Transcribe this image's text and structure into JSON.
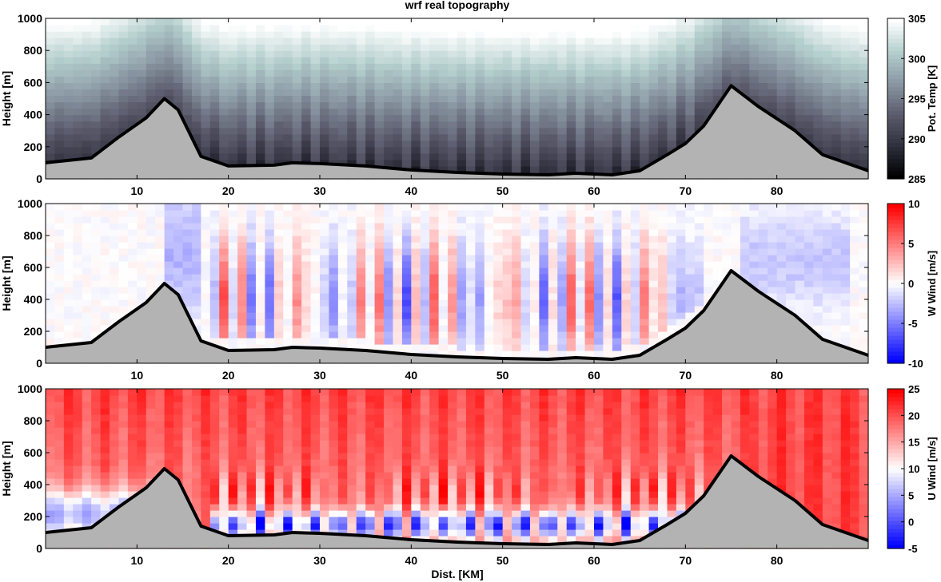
{
  "figure_title": "wrf real topography",
  "xlabel": "Dist. [KM]",
  "x_ticks": [
    10,
    20,
    30,
    40,
    50,
    60,
    70,
    80
  ],
  "xlim": [
    0,
    90
  ],
  "y_ticks": [
    0,
    200,
    400,
    600,
    800,
    1000
  ],
  "ylim": [
    0,
    1000
  ],
  "chart_data": [
    {
      "type": "heatmap",
      "field": "theta",
      "ylabel": "Height [m]",
      "colorbar_label": "Pot. Temp [K]",
      "colorbar_ticks": [
        285,
        290,
        295,
        300,
        305
      ],
      "clim": [
        285,
        305
      ],
      "colormap": [
        "#000000",
        "#2f2f3d",
        "#5b5b6c",
        "#8a97a3",
        "#b4cfcd",
        "#ffffff"
      ],
      "topography": {
        "x": [
          0,
          5,
          8,
          11,
          13,
          14.5,
          17,
          20,
          25,
          27,
          30,
          35,
          40,
          45,
          50,
          55,
          58,
          62,
          65,
          68,
          70,
          72,
          75,
          78,
          82,
          85,
          90
        ],
        "y": [
          100,
          130,
          260,
          380,
          500,
          430,
          140,
          80,
          85,
          100,
          95,
          80,
          55,
          40,
          30,
          25,
          35,
          25,
          50,
          150,
          220,
          330,
          580,
          450,
          300,
          150,
          50
        ]
      }
    },
    {
      "type": "heatmap",
      "field": "w",
      "ylabel": "Height [m]",
      "colorbar_label": "W Wind [m/s]",
      "colorbar_ticks": [
        10,
        5,
        0,
        -5,
        -10
      ],
      "clim": [
        -10,
        10
      ],
      "colormap": [
        "#0000ff",
        "#ffffff",
        "#ff0000"
      ],
      "topography": {
        "x": [
          0,
          5,
          8,
          11,
          13,
          14.5,
          17,
          20,
          25,
          27,
          30,
          35,
          40,
          45,
          50,
          55,
          58,
          62,
          65,
          68,
          70,
          72,
          75,
          78,
          82,
          85,
          90
        ],
        "y": [
          100,
          130,
          260,
          380,
          500,
          430,
          140,
          80,
          85,
          100,
          95,
          80,
          55,
          40,
          30,
          25,
          35,
          25,
          50,
          150,
          220,
          330,
          580,
          450,
          300,
          150,
          50
        ]
      }
    },
    {
      "type": "heatmap",
      "field": "u",
      "ylabel": "Height [m]",
      "colorbar_label": "U Wind [m/s]",
      "colorbar_ticks": [
        25,
        20,
        15,
        10,
        5,
        0,
        -5
      ],
      "clim": [
        -5,
        25
      ],
      "colormap": [
        "#0000ff",
        "#ffffff",
        "#ff0000"
      ],
      "topography": {
        "x": [
          0,
          5,
          8,
          11,
          13,
          14.5,
          17,
          20,
          25,
          27,
          30,
          35,
          40,
          45,
          50,
          55,
          58,
          62,
          65,
          68,
          70,
          72,
          75,
          78,
          82,
          85,
          90
        ],
        "y": [
          100,
          130,
          260,
          380,
          500,
          430,
          140,
          80,
          85,
          100,
          95,
          80,
          55,
          40,
          30,
          25,
          35,
          25,
          50,
          150,
          220,
          330,
          580,
          450,
          300,
          150,
          50
        ]
      }
    }
  ]
}
